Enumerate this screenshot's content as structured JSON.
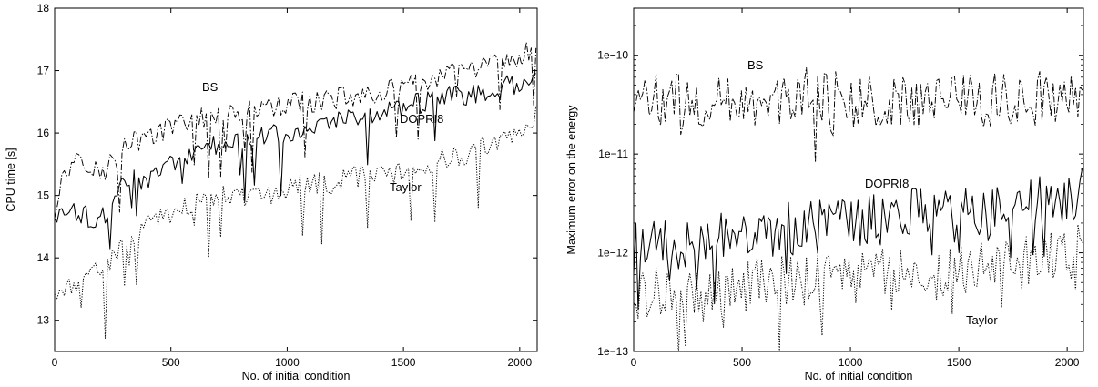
{
  "chart_data": [
    {
      "type": "line",
      "xlabel": "No. of initial condition",
      "ylabel": "CPU time [s]",
      "xlim": [
        0,
        2075
      ],
      "ylim": [
        12.5,
        18
      ],
      "yscale": "linear",
      "x_ticks": [
        0,
        500,
        1000,
        1500,
        2000
      ],
      "x_tick_labels": [
        "0",
        "500",
        "1000",
        "1500",
        "2000"
      ],
      "y_ticks": [
        13,
        14,
        15,
        16,
        17,
        18
      ],
      "y_tick_labels": [
        "13",
        "14",
        "15",
        "16",
        "17",
        "18"
      ],
      "grid": false,
      "legend": "none (series labelled inline)",
      "series": [
        {
          "name": "BS",
          "style": "dash-dot",
          "x": [
            0,
            100,
            200,
            300,
            400,
            500,
            600,
            700,
            800,
            900,
            1000,
            1100,
            1200,
            1300,
            1400,
            1500,
            1600,
            1700,
            1800,
            1900,
            2000,
            2070
          ],
          "y": [
            15.0,
            15.7,
            15.3,
            15.9,
            15.9,
            16.1,
            16.2,
            16.3,
            16.3,
            16.4,
            16.45,
            16.5,
            16.55,
            16.6,
            16.65,
            16.75,
            16.85,
            16.95,
            17.0,
            17.1,
            17.2,
            17.4
          ]
        },
        {
          "name": "DOPRI8",
          "style": "solid",
          "x": [
            0,
            100,
            200,
            300,
            400,
            500,
            600,
            700,
            800,
            900,
            1000,
            1100,
            1200,
            1300,
            1400,
            1500,
            1600,
            1700,
            1800,
            1900,
            2000,
            2070
          ],
          "y": [
            14.7,
            14.7,
            14.6,
            15.3,
            15.2,
            15.5,
            15.7,
            15.8,
            15.9,
            16.0,
            16.0,
            16.1,
            16.2,
            16.3,
            16.3,
            16.4,
            16.5,
            16.6,
            16.6,
            16.7,
            16.8,
            17.0
          ]
        },
        {
          "name": "Taylor",
          "style": "dotted",
          "x": [
            0,
            100,
            200,
            300,
            400,
            500,
            600,
            700,
            800,
            900,
            1000,
            1100,
            1200,
            1300,
            1400,
            1500,
            1600,
            1700,
            1800,
            1900,
            2000,
            2070
          ],
          "y": [
            13.5,
            13.6,
            13.8,
            14.2,
            14.5,
            14.7,
            14.9,
            15.0,
            15.0,
            15.0,
            15.1,
            15.2,
            15.2,
            15.3,
            15.3,
            15.4,
            15.5,
            15.6,
            15.7,
            15.9,
            16.0,
            16.3
          ]
        }
      ]
    },
    {
      "type": "line",
      "xlabel": "No. of initial condition",
      "ylabel": "Maximum error on the energy",
      "xlim": [
        0,
        2075
      ],
      "ylim": [
        1e-13,
        3e-10
      ],
      "yscale": "log",
      "x_ticks": [
        0,
        500,
        1000,
        1500,
        2000
      ],
      "x_tick_labels": [
        "0",
        "500",
        "1000",
        "1500",
        "2000"
      ],
      "y_ticks": [
        1e-13,
        1e-12,
        1e-11,
        1e-10
      ],
      "y_tick_labels": [
        "1e−13",
        "1e−12",
        "1e−11",
        "1e−10"
      ],
      "grid": false,
      "legend": "none (series labelled inline)",
      "series": [
        {
          "name": "BS",
          "style": "dash-dot",
          "x": [
            0,
            200,
            400,
            600,
            800,
            1000,
            1200,
            1400,
            1600,
            1800,
            2000,
            2070
          ],
          "y": [
            3.5e-11,
            3.5e-11,
            3.5e-11,
            3.5e-11,
            4e-11,
            3.5e-11,
            3.5e-11,
            3.5e-11,
            3.5e-11,
            3.5e-11,
            4e-11,
            4e-11
          ]
        },
        {
          "name": "DOPRI8",
          "style": "solid",
          "x": [
            0,
            200,
            400,
            600,
            800,
            1000,
            1200,
            1400,
            1600,
            1800,
            2000,
            2070
          ],
          "y": [
            1.2e-12,
            1.3e-12,
            1.5e-12,
            1.7e-12,
            1.8e-12,
            2.2e-12,
            2.3e-12,
            2.5e-12,
            2.7e-12,
            3e-12,
            3.5e-12,
            4e-12
          ]
        },
        {
          "name": "Taylor",
          "style": "dotted",
          "x": [
            0,
            200,
            400,
            600,
            800,
            1000,
            1200,
            1400,
            1600,
            1800,
            2000,
            2070
          ],
          "y": [
            4e-13,
            4e-13,
            4.5e-13,
            5e-13,
            5e-13,
            5.5e-13,
            6e-13,
            6e-13,
            7e-13,
            8e-13,
            9e-13,
            1.1e-12
          ]
        }
      ]
    }
  ]
}
